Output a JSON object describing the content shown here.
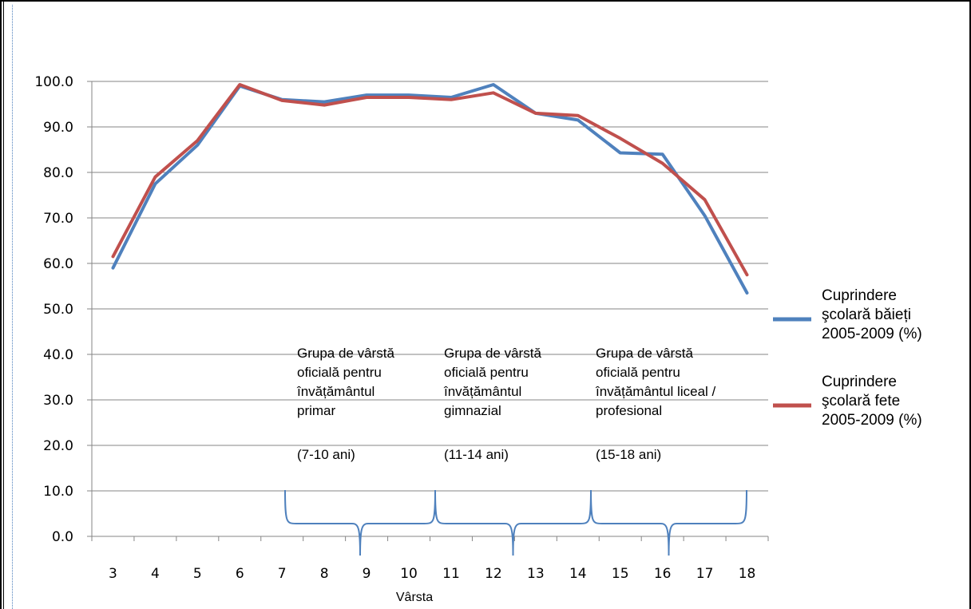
{
  "chart_data": {
    "type": "line",
    "xlabel": "Vârsta",
    "ylabel": "",
    "x": [
      "3",
      "4",
      "5",
      "6",
      "7",
      "8",
      "9",
      "10",
      "11",
      "12",
      "13",
      "14",
      "15",
      "16",
      "17",
      "18"
    ],
    "ylim": [
      0,
      100
    ],
    "yticks": [
      "0.0",
      "10.0",
      "20.0",
      "30.0",
      "40.0",
      "50.0",
      "60.0",
      "70.0",
      "80.0",
      "90.0",
      "100.0"
    ],
    "grid": true,
    "legend_position": "right",
    "series": [
      {
        "name": "Cuprindere școlară băieți 2005-2009 (%)",
        "legend_lines": [
          "Cuprindere",
          "şcolară băieți",
          "2005-2009 (%)"
        ],
        "color": "#4f81bd",
        "values": [
          59.0,
          77.5,
          86.0,
          99.0,
          96.0,
          95.5,
          97.0,
          97.0,
          96.5,
          99.3,
          93.0,
          91.5,
          84.3,
          84.0,
          70.5,
          53.5
        ]
      },
      {
        "name": "Cuprindere școlară fete 2005-2009 (%)",
        "legend_lines": [
          "Cuprindere",
          "şcolară fete",
          "2005-2009 (%)"
        ],
        "color": "#c0504d",
        "values": [
          61.5,
          79.0,
          87.0,
          99.3,
          95.8,
          94.8,
          96.5,
          96.5,
          96.0,
          97.5,
          93.0,
          92.5,
          87.5,
          82.0,
          74.0,
          57.5
        ]
      }
    ],
    "annotations": [
      {
        "lines": [
          "Grupa de vârstă",
          "oficială pentru",
          "învățământul",
          "primar"
        ],
        "range": "(7-10 ani)"
      },
      {
        "lines": [
          "Grupa de vârstă",
          "oficială pentru",
          "învățământul",
          "gimnazial"
        ],
        "range": "(11-14 ani)"
      },
      {
        "lines": [
          "Grupa de vârstă",
          "oficială pentru",
          "învățământul liceal /",
          "profesional"
        ],
        "range": "(15-18 ani)"
      }
    ],
    "bracket_color": "#4f81bd"
  }
}
